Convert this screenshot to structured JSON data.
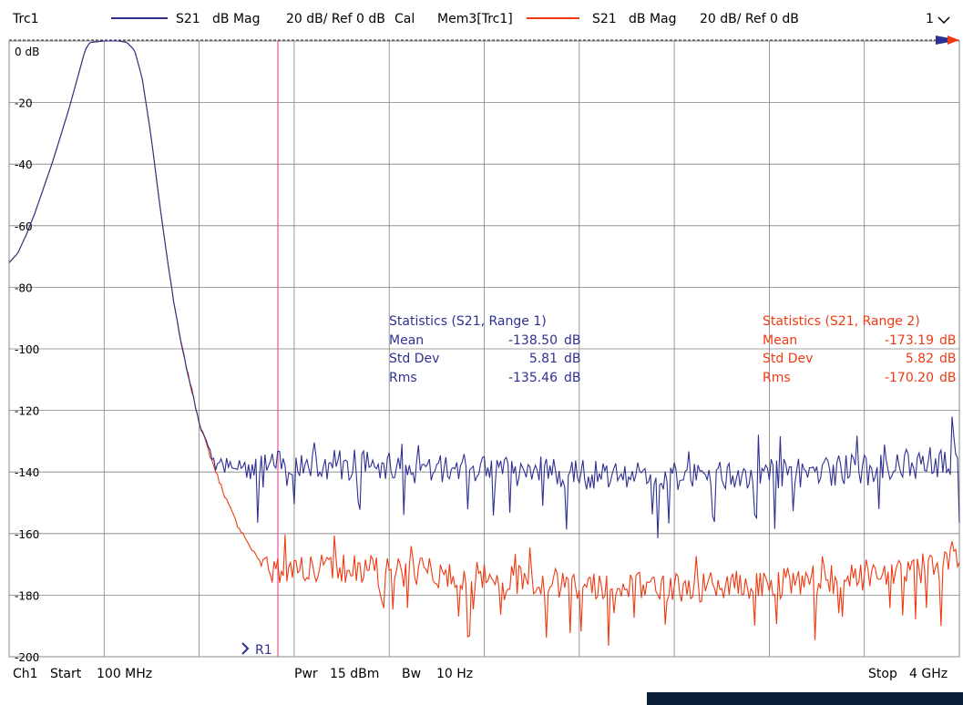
{
  "header": {
    "trace_name": "Trc1",
    "trace1": {
      "param": "S21",
      "format": "dB Mag",
      "scale": "20 dB/ Ref 0 dB",
      "flag": "Cal"
    },
    "trace2": {
      "name": "Mem3[Trc1]",
      "param": "S21",
      "format": "dB Mag",
      "scale": "20 dB/ Ref 0 dB"
    },
    "menu_label": "1"
  },
  "footer": {
    "channel": "Ch1",
    "start_label": "Start",
    "start_value": "100 MHz",
    "pwr_label": "Pwr",
    "pwr_value": "15 dBm",
    "bw_label": "Bw",
    "bw_value": "10 Hz",
    "stop_label": "Stop",
    "stop_value": "4 GHz"
  },
  "colors": {
    "trace1": "#2e3192",
    "trace2": "#ee3a12",
    "marker_line": "#e8569a",
    "grid": "#808080"
  },
  "chart_data": {
    "type": "line",
    "x_range": [
      "100 MHz",
      "4 GHz"
    ],
    "ylim": [
      -200,
      0
    ],
    "y_ticks": [
      "0 dB",
      "-20",
      "-40",
      "-60",
      "-80",
      "-100",
      "-120",
      "-140",
      "-160",
      "-180",
      "-200"
    ],
    "grid": true,
    "marker": {
      "label": "R1"
    },
    "series": [
      {
        "name": "S21",
        "color": "#2e3192",
        "points": [
          [
            0,
            -72
          ],
          [
            0.45,
            -69
          ],
          [
            0.9,
            -63
          ],
          [
            1.35,
            -56
          ],
          [
            1.8,
            -48
          ],
          [
            2.25,
            -40
          ],
          [
            2.7,
            -31
          ],
          [
            3.15,
            -22
          ],
          [
            3.6,
            -12
          ],
          [
            4,
            -3
          ],
          [
            4.25,
            -0.5
          ],
          [
            5,
            0
          ],
          [
            5.8,
            0
          ],
          [
            6.2,
            -0.5
          ],
          [
            6.6,
            -3
          ],
          [
            7,
            -12
          ],
          [
            7.45,
            -30
          ],
          [
            7.9,
            -52
          ],
          [
            8.35,
            -72
          ],
          [
            8.8,
            -90
          ],
          [
            9.25,
            -104
          ],
          [
            9.7,
            -116
          ],
          [
            10.1,
            -126
          ],
          [
            10.6,
            -133
          ],
          [
            11,
            -137
          ],
          [
            11.5,
            -139
          ],
          [
            12,
            -140
          ],
          [
            50,
            -140
          ]
        ],
        "noise_mean": -138.5,
        "drift": 4
      },
      {
        "name": "Mem3[Trc1]",
        "color": "#ee3a12",
        "points": [
          [
            0,
            -72
          ],
          [
            0.45,
            -69
          ],
          [
            0.9,
            -63
          ],
          [
            1.35,
            -56
          ],
          [
            1.8,
            -48
          ],
          [
            2.25,
            -40
          ],
          [
            2.7,
            -31
          ],
          [
            3.15,
            -22
          ],
          [
            3.6,
            -12
          ],
          [
            4,
            -3
          ],
          [
            4.25,
            -0.5
          ],
          [
            5,
            0
          ],
          [
            5.8,
            0
          ],
          [
            6.2,
            -0.5
          ],
          [
            6.6,
            -3
          ],
          [
            7,
            -12
          ],
          [
            7.45,
            -30
          ],
          [
            7.9,
            -52
          ],
          [
            8.35,
            -72
          ],
          [
            8.8,
            -90
          ],
          [
            9.25,
            -104
          ],
          [
            9.7,
            -116
          ],
          [
            10.1,
            -126
          ],
          [
            10.6,
            -135
          ],
          [
            11,
            -142
          ],
          [
            11.5,
            -150
          ],
          [
            12,
            -157
          ],
          [
            12.6,
            -163
          ],
          [
            13.2,
            -167
          ],
          [
            14,
            -170
          ],
          [
            50,
            -172
          ]
        ],
        "noise_mean": -173.19,
        "drift": 6
      }
    ],
    "statistics": [
      {
        "title": "Statistics  (S21, Range 1)",
        "rows": [
          {
            "label": "Mean",
            "value": "-138.50",
            "unit": "dB"
          },
          {
            "label": "Std Dev",
            "value": "5.81",
            "unit": "dB"
          },
          {
            "label": "Rms",
            "value": "-135.46",
            "unit": "dB"
          }
        ]
      },
      {
        "title": "Statistics  (S21, Range 2)",
        "rows": [
          {
            "label": "Mean",
            "value": "-173.19",
            "unit": "dB"
          },
          {
            "label": "Std Dev",
            "value": "5.82",
            "unit": "dB"
          },
          {
            "label": "Rms",
            "value": "-170.20",
            "unit": "dB"
          }
        ]
      }
    ]
  }
}
